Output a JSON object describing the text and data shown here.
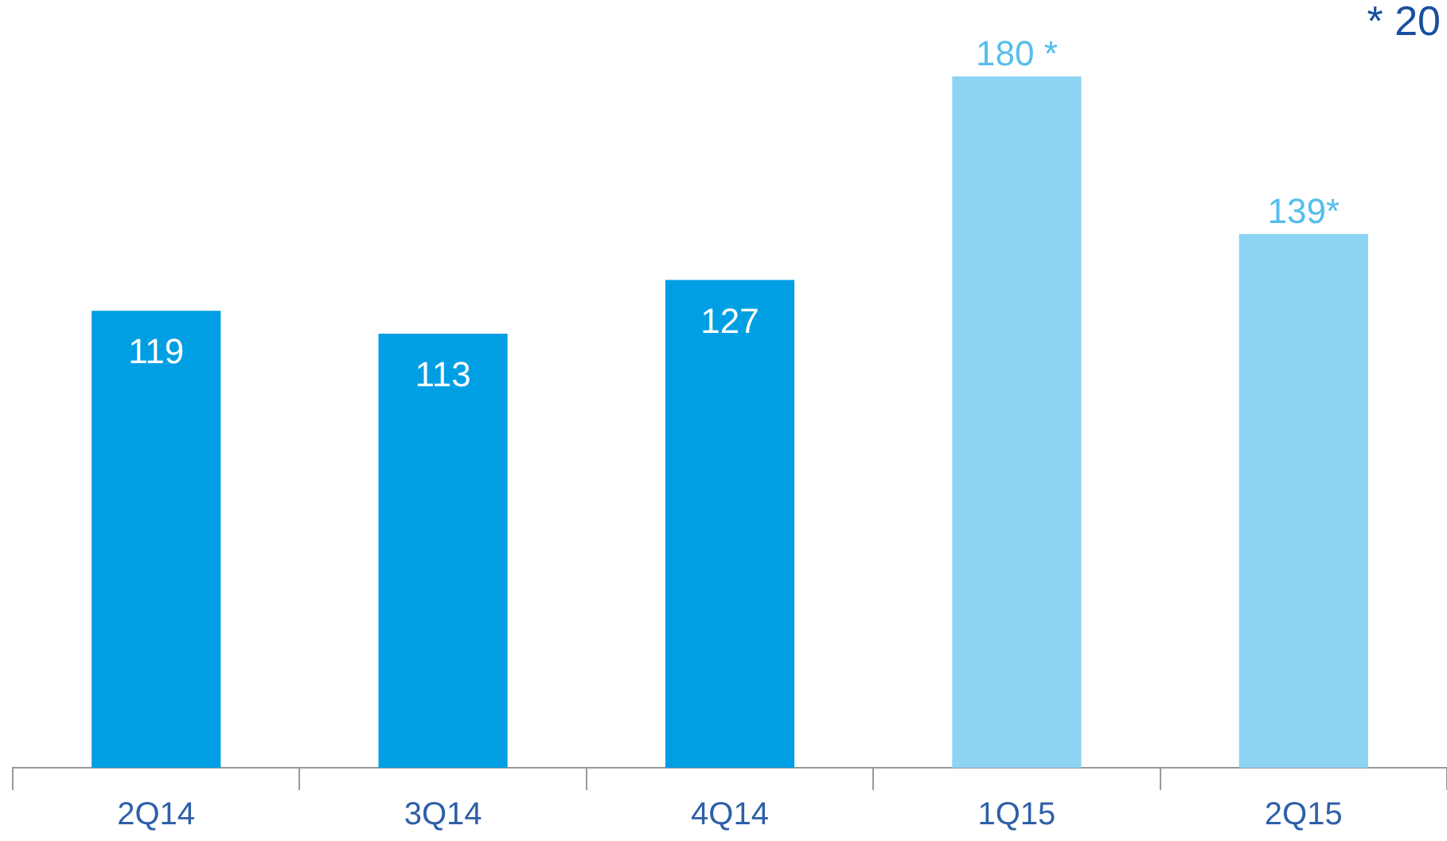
{
  "chart_data": {
    "type": "bar",
    "categories": [
      "2Q14",
      "3Q14",
      "4Q14",
      "1Q15",
      "2Q15"
    ],
    "values": [
      119,
      113,
      127,
      180,
      139
    ],
    "colors": [
      "#009fe3",
      "#009fe3",
      "#009fe3",
      "#8dd3f3",
      "#8dd3f3"
    ],
    "value_labels": [
      "119",
      "113",
      "127",
      "180 *",
      "139*"
    ],
    "tick_labels": "x",
    "grid": false,
    "legend": false,
    "annotations": [
      "* 20"
    ]
  }
}
